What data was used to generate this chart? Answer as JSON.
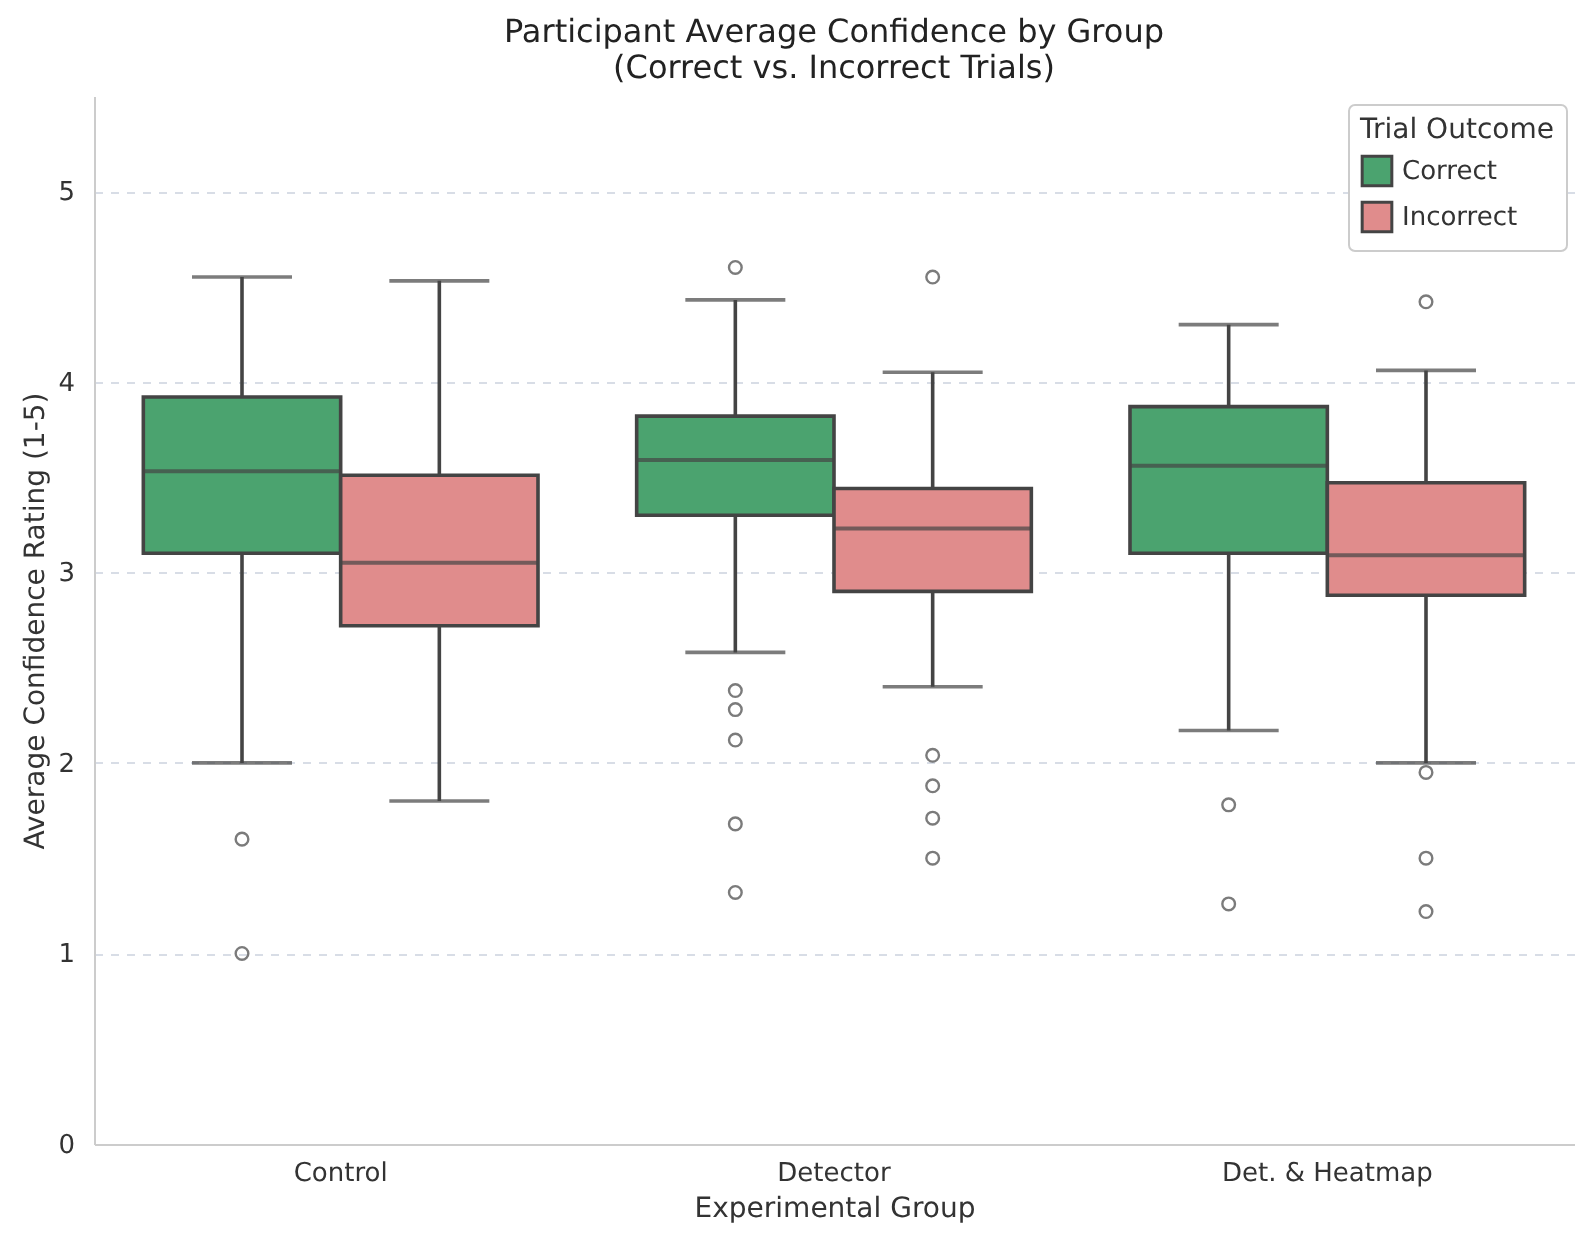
{
  "chart_data": {
    "type": "box",
    "title": "Participant Average Confidence by Group",
    "subtitle": "(Correct vs. Incorrect Trials)",
    "xlabel": "Experimental Group",
    "ylabel": "Average Confidence Rating (1-5)",
    "legend_title": "Trial Outcome",
    "legend": "top right",
    "grid": "y",
    "ylim": [
      0,
      5.5
    ],
    "yticks": [
      0,
      1,
      2,
      3,
      4,
      5
    ],
    "categories": [
      "Control",
      "Detector",
      "Det. & Heatmap"
    ],
    "series": [
      {
        "name": "Correct",
        "color": "#4ba36f",
        "boxes": [
          {
            "low": 2.0,
            "q1": 3.1,
            "median": 3.53,
            "q3": 3.92,
            "high": 4.55,
            "outliers": [
              1.6,
              1.0
            ]
          },
          {
            "low": 2.58,
            "q1": 3.3,
            "median": 3.59,
            "q3": 3.82,
            "high": 4.43,
            "outliers": [
              4.6,
              2.38,
              2.28,
              2.12,
              1.68,
              1.32
            ]
          },
          {
            "low": 2.17,
            "q1": 3.1,
            "median": 3.56,
            "q3": 3.87,
            "high": 4.3,
            "outliers": [
              1.78,
              1.26
            ]
          }
        ]
      },
      {
        "name": "Incorrect",
        "color": "#e08c8c",
        "boxes": [
          {
            "low": 1.8,
            "q1": 2.72,
            "median": 3.05,
            "q3": 3.51,
            "high": 4.53
          },
          {
            "low": 2.4,
            "q1": 2.9,
            "median": 3.23,
            "q3": 3.44,
            "high": 4.05,
            "outliers": [
              4.55,
              2.04,
              1.88,
              1.71,
              1.5
            ]
          },
          {
            "low": 2.0,
            "q1": 2.88,
            "median": 3.09,
            "q3": 3.47,
            "high": 4.06,
            "outliers": [
              4.42,
              1.95,
              1.5,
              1.22
            ]
          }
        ]
      }
    ]
  }
}
